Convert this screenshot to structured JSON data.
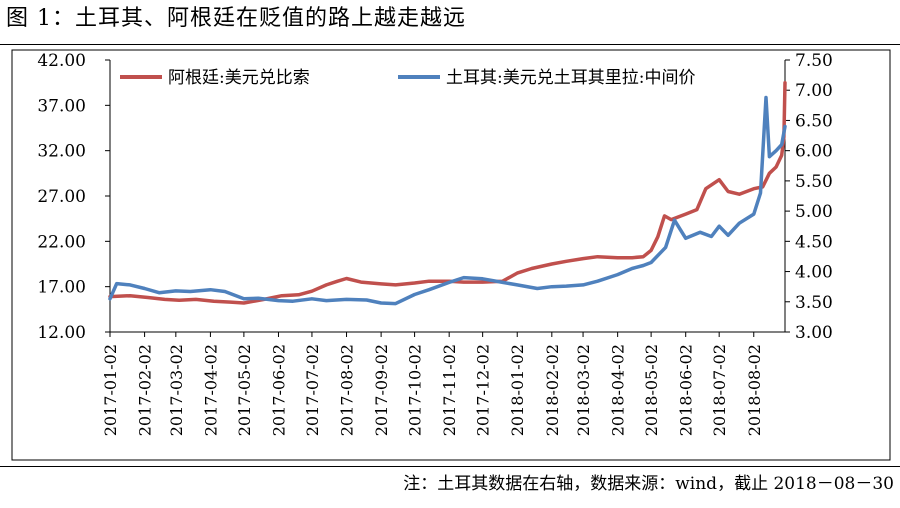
{
  "figure": {
    "title": "图 1：土耳其、阿根廷在贬值的路上越走越远",
    "note": "注：土耳其数据在右轴，数据来源：wind，截止 2018－08－30"
  },
  "chart_data": {
    "type": "line",
    "title": "",
    "xlabel": "",
    "ylabel_left": "",
    "ylabel_right": "",
    "left_axis": {
      "range": [
        12,
        42
      ],
      "ticks": [
        "12.00",
        "17.00",
        "22.00",
        "27.00",
        "32.00",
        "37.00",
        "42.00"
      ],
      "tick_values": [
        12,
        17,
        22,
        27,
        32,
        37,
        42
      ]
    },
    "right_axis": {
      "range": [
        3.0,
        7.5
      ],
      "ticks": [
        "3.00",
        "3.50",
        "4.00",
        "4.50",
        "5.00",
        "5.50",
        "6.00",
        "6.50",
        "7.00",
        "7.50"
      ],
      "tick_values": [
        3.0,
        3.5,
        4.0,
        4.5,
        5.0,
        5.5,
        6.0,
        6.5,
        7.0,
        7.5
      ]
    },
    "x_range": [
      "2017-01-02",
      "2018-08-30"
    ],
    "x_ticks": [
      "2017-01-02",
      "2017-02-02",
      "2017-03-02",
      "2017-04-02",
      "2017-05-02",
      "2017-06-02",
      "2017-07-02",
      "2017-08-02",
      "2017-09-02",
      "2017-10-02",
      "2017-11-02",
      "2017-12-02",
      "2018-01-02",
      "2018-02-02",
      "2018-03-02",
      "2018-04-02",
      "2018-05-02",
      "2018-06-02",
      "2018-07-02",
      "2018-08-02"
    ],
    "grid": false,
    "legend_placement": "top",
    "series": [
      {
        "name": "阿根廷:美元兑比索",
        "axis": "left",
        "color": "#c0504d",
        "points": [
          [
            "2017-01-02",
            15.9
          ],
          [
            "2017-01-20",
            16.0
          ],
          [
            "2017-02-05",
            15.8
          ],
          [
            "2017-02-20",
            15.6
          ],
          [
            "2017-03-05",
            15.5
          ],
          [
            "2017-03-20",
            15.6
          ],
          [
            "2017-04-05",
            15.4
          ],
          [
            "2017-04-20",
            15.3
          ],
          [
            "2017-05-02",
            15.2
          ],
          [
            "2017-05-20",
            15.6
          ],
          [
            "2017-06-05",
            16.0
          ],
          [
            "2017-06-20",
            16.1
          ],
          [
            "2017-07-02",
            16.5
          ],
          [
            "2017-07-15",
            17.2
          ],
          [
            "2017-07-25",
            17.6
          ],
          [
            "2017-08-02",
            17.9
          ],
          [
            "2017-08-15",
            17.5
          ],
          [
            "2017-09-02",
            17.3
          ],
          [
            "2017-09-15",
            17.2
          ],
          [
            "2017-10-02",
            17.4
          ],
          [
            "2017-10-15",
            17.6
          ],
          [
            "2017-11-02",
            17.6
          ],
          [
            "2017-11-15",
            17.5
          ],
          [
            "2017-12-02",
            17.5
          ],
          [
            "2017-12-20",
            17.6
          ],
          [
            "2018-01-02",
            18.5
          ],
          [
            "2018-01-15",
            19.0
          ],
          [
            "2018-02-02",
            19.5
          ],
          [
            "2018-02-15",
            19.8
          ],
          [
            "2018-03-02",
            20.1
          ],
          [
            "2018-03-15",
            20.3
          ],
          [
            "2018-04-02",
            20.2
          ],
          [
            "2018-04-15",
            20.2
          ],
          [
            "2018-04-25",
            20.3
          ],
          [
            "2018-05-02",
            21.0
          ],
          [
            "2018-05-08",
            22.5
          ],
          [
            "2018-05-14",
            24.8
          ],
          [
            "2018-05-20",
            24.4
          ],
          [
            "2018-06-02",
            25.0
          ],
          [
            "2018-06-12",
            25.5
          ],
          [
            "2018-06-20",
            27.8
          ],
          [
            "2018-07-02",
            28.8
          ],
          [
            "2018-07-10",
            27.5
          ],
          [
            "2018-07-20",
            27.2
          ],
          [
            "2018-08-02",
            27.8
          ],
          [
            "2018-08-10",
            28.0
          ],
          [
            "2018-08-16",
            29.5
          ],
          [
            "2018-08-22",
            30.2
          ],
          [
            "2018-08-27",
            31.5
          ],
          [
            "2018-08-29",
            33.5
          ],
          [
            "2018-08-30",
            39.5
          ]
        ]
      },
      {
        "name": "土耳其:美元兑土耳其里拉:中间价",
        "axis": "right",
        "color": "#4f81bd",
        "points": [
          [
            "2017-01-02",
            3.55
          ],
          [
            "2017-01-08",
            3.8
          ],
          [
            "2017-01-20",
            3.78
          ],
          [
            "2017-02-02",
            3.72
          ],
          [
            "2017-02-15",
            3.65
          ],
          [
            "2017-03-02",
            3.68
          ],
          [
            "2017-03-15",
            3.67
          ],
          [
            "2017-04-02",
            3.7
          ],
          [
            "2017-04-15",
            3.67
          ],
          [
            "2017-05-02",
            3.55
          ],
          [
            "2017-05-15",
            3.56
          ],
          [
            "2017-06-02",
            3.52
          ],
          [
            "2017-06-15",
            3.51
          ],
          [
            "2017-07-02",
            3.55
          ],
          [
            "2017-07-15",
            3.52
          ],
          [
            "2017-08-02",
            3.54
          ],
          [
            "2017-08-20",
            3.53
          ],
          [
            "2017-09-02",
            3.48
          ],
          [
            "2017-09-15",
            3.47
          ],
          [
            "2017-10-02",
            3.62
          ],
          [
            "2017-10-15",
            3.7
          ],
          [
            "2017-11-02",
            3.82
          ],
          [
            "2017-11-15",
            3.9
          ],
          [
            "2017-12-02",
            3.88
          ],
          [
            "2017-12-20",
            3.82
          ],
          [
            "2018-01-02",
            3.78
          ],
          [
            "2018-01-20",
            3.72
          ],
          [
            "2018-02-02",
            3.75
          ],
          [
            "2018-02-15",
            3.76
          ],
          [
            "2018-03-02",
            3.78
          ],
          [
            "2018-03-15",
            3.84
          ],
          [
            "2018-04-02",
            3.95
          ],
          [
            "2018-04-15",
            4.05
          ],
          [
            "2018-04-25",
            4.1
          ],
          [
            "2018-05-02",
            4.15
          ],
          [
            "2018-05-15",
            4.4
          ],
          [
            "2018-05-23",
            4.85
          ],
          [
            "2018-06-02",
            4.55
          ],
          [
            "2018-06-15",
            4.65
          ],
          [
            "2018-06-25",
            4.58
          ],
          [
            "2018-07-02",
            4.75
          ],
          [
            "2018-07-10",
            4.6
          ],
          [
            "2018-07-20",
            4.8
          ],
          [
            "2018-08-02",
            4.95
          ],
          [
            "2018-08-08",
            5.3
          ],
          [
            "2018-08-13",
            6.88
          ],
          [
            "2018-08-16",
            5.9
          ],
          [
            "2018-08-22",
            6.0
          ],
          [
            "2018-08-27",
            6.1
          ],
          [
            "2018-08-30",
            6.4
          ]
        ]
      }
    ]
  }
}
